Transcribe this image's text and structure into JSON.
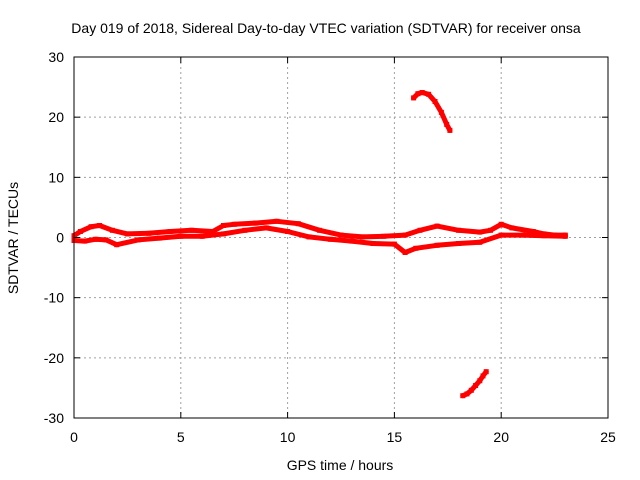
{
  "chart_data": {
    "type": "scatter",
    "title": "Day 019 of 2018, Sidereal Day-to-day VTEC variation (SDTVAR) for receiver onsa",
    "xlabel": "GPS time / hours",
    "ylabel": "SDTVAR / TECUs",
    "xlim": [
      0,
      25
    ],
    "ylim": [
      -30,
      30
    ],
    "xticks": [
      0,
      5,
      10,
      15,
      20,
      25
    ],
    "yticks": [
      -30,
      -20,
      -10,
      0,
      10,
      20,
      30
    ],
    "grid": true,
    "series_color": "#ff0000",
    "series": [
      {
        "name": "main-band-upper",
        "x": [
          0.0,
          0.3,
          0.8,
          1.2,
          1.8,
          2.5,
          3.5,
          4.5,
          5.5,
          6.5,
          7.0,
          7.5,
          8.5,
          9.5,
          10.5,
          11.5,
          12.5,
          13.5,
          14.5,
          15.5,
          16.2,
          17.0,
          18.0,
          19.0,
          19.5,
          20.0,
          20.5,
          21.5,
          22.0,
          22.5,
          23.0
        ],
        "y": [
          0.3,
          1.0,
          1.8,
          2.0,
          1.2,
          0.6,
          0.7,
          1.0,
          1.2,
          1.0,
          2.0,
          2.2,
          2.4,
          2.7,
          2.3,
          1.2,
          0.4,
          0.1,
          0.2,
          0.4,
          1.2,
          1.9,
          1.2,
          0.9,
          1.2,
          2.2,
          1.6,
          1.0,
          0.6,
          0.4,
          0.4
        ]
      },
      {
        "name": "main-band-lower",
        "x": [
          0.0,
          0.5,
          1.0,
          1.5,
          2.0,
          3.0,
          4.0,
          5.0,
          6.0,
          7.0,
          8.0,
          9.0,
          10.0,
          11.0,
          12.0,
          13.0,
          14.0,
          15.0,
          15.5,
          16.0,
          17.0,
          18.0,
          19.0,
          20.0,
          21.0,
          22.0,
          23.0
        ],
        "y": [
          -0.5,
          -0.6,
          -0.3,
          -0.4,
          -1.2,
          -0.4,
          -0.1,
          0.2,
          0.2,
          0.6,
          1.2,
          1.6,
          1.0,
          0.1,
          -0.3,
          -0.6,
          -1.0,
          -1.1,
          -2.5,
          -1.8,
          -1.3,
          -1.0,
          -0.8,
          0.4,
          0.4,
          0.3,
          0.2
        ]
      },
      {
        "name": "arc-upper",
        "x": [
          15.9,
          16.1,
          16.3,
          16.6,
          16.9,
          17.2,
          17.45,
          17.6
        ],
        "y": [
          23.2,
          23.9,
          24.1,
          23.8,
          22.6,
          20.8,
          18.8,
          17.8
        ]
      },
      {
        "name": "arc-lower",
        "x": [
          18.2,
          18.4,
          18.6,
          18.8,
          19.0,
          19.15,
          19.3
        ],
        "y": [
          -26.3,
          -26.0,
          -25.4,
          -24.6,
          -23.8,
          -23.0,
          -22.3
        ]
      }
    ]
  }
}
